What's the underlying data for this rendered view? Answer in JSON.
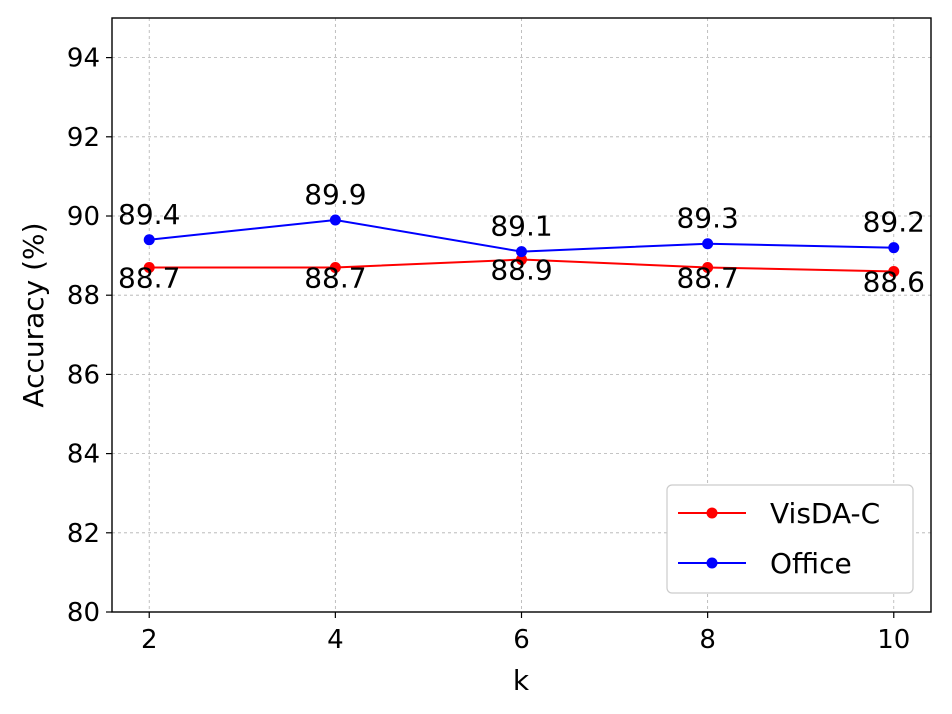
{
  "chart_data": {
    "type": "line",
    "x": [
      2,
      4,
      6,
      8,
      10
    ],
    "xticks": [
      "2",
      "4",
      "6",
      "8",
      "10"
    ],
    "xlabel": "k",
    "ylabel": "Accuracy (%)",
    "ylim": [
      80,
      95
    ],
    "yticks": [
      "80",
      "82",
      "84",
      "86",
      "88",
      "90",
      "92",
      "94"
    ],
    "grid": true,
    "legend_position": "lower-right",
    "series": [
      {
        "name": "VisDA-C",
        "color": "#ff0000",
        "values": [
          88.7,
          88.7,
          88.9,
          88.7,
          88.6
        ],
        "labels": [
          "88.7",
          "88.7",
          "88.9",
          "88.7",
          "88.6"
        ],
        "label_position": "below"
      },
      {
        "name": "Office",
        "color": "#0000ff",
        "values": [
          89.4,
          89.9,
          89.1,
          89.3,
          89.2
        ],
        "labels": [
          "89.4",
          "89.9",
          "89.1",
          "89.3",
          "89.2"
        ],
        "label_position": "above"
      }
    ]
  }
}
